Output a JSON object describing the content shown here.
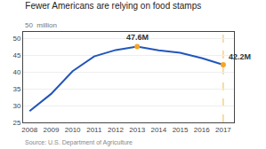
{
  "chart_data": {
    "type": "line",
    "title": "Fewer Americans are relying on food stamps",
    "ylabel": "50  million",
    "x": [
      2008,
      2009,
      2010,
      2011,
      2012,
      2013,
      2014,
      2015,
      2016,
      2017
    ],
    "series": [
      {
        "type": "line",
        "color": "#2255bb",
        "values": [
          28.4,
          33.5,
          40.3,
          44.7,
          46.6,
          47.6,
          46.5,
          45.8,
          44.2,
          42.2
        ]
      },
      {
        "type": "scatter",
        "color": "#f5a623",
        "values": [
          null,
          null,
          null,
          null,
          null,
          47.6,
          null,
          null,
          null,
          42.2
        ]
      }
    ],
    "annotations": [
      {
        "text": "47.6M",
        "x": 2013,
        "y": 47.6
      },
      {
        "text": "42.2M",
        "x": 2017,
        "y": 42.2
      },
      {
        "text": "Source: U.S. Department of Agriculture"
      }
    ],
    "xlim": [
      2007.7,
      2017.5
    ],
    "xticks": [
      2008,
      2009,
      2010,
      2011,
      2012,
      2013,
      2014,
      2015,
      2016,
      2017
    ],
    "ylim": [
      25,
      52
    ],
    "yticks": [
      25,
      30,
      35,
      40,
      45,
      50
    ],
    "grid": true
  }
}
